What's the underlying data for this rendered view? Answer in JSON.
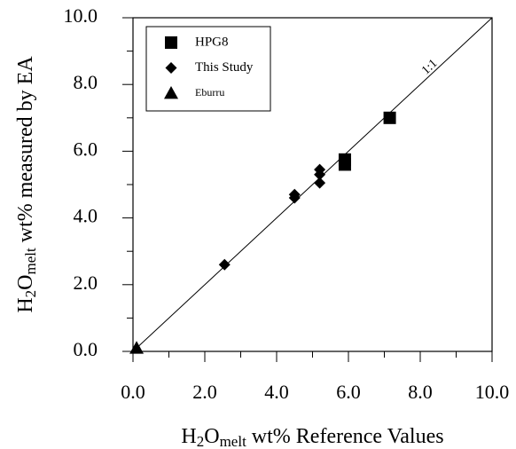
{
  "chart_data": {
    "type": "scatter",
    "xlabel_parts": [
      "H",
      "2",
      "O",
      "melt",
      " wt% Reference Values"
    ],
    "ylabel_parts": [
      "H",
      "2",
      "O",
      "melt",
      " wt% measured by EA"
    ],
    "line_label": "1:1",
    "line": [
      [
        0,
        0
      ],
      [
        10,
        10
      ]
    ],
    "xlim": [
      0,
      10
    ],
    "ylim": [
      0,
      10
    ],
    "xticks": [
      {
        "value": 0,
        "label": "0.0"
      },
      {
        "value": 2,
        "label": "2.0"
      },
      {
        "value": 4,
        "label": "4.0"
      },
      {
        "value": 6,
        "label": "6.0"
      },
      {
        "value": 8,
        "label": "8.0"
      },
      {
        "value": 10,
        "label": "10.0"
      }
    ],
    "yticks": [
      {
        "value": 0,
        "label": "0.0"
      },
      {
        "value": 2,
        "label": "2.0"
      },
      {
        "value": 4,
        "label": "4.0"
      },
      {
        "value": 6,
        "label": "6.0"
      },
      {
        "value": 8,
        "label": "8.0"
      },
      {
        "value": 10,
        "label": "10.0"
      }
    ],
    "minor_ticks": [
      1,
      3,
      5,
      7,
      9
    ],
    "legend": "upper left",
    "series": [
      {
        "name": "HPG8",
        "marker": "square",
        "color": "#000000",
        "x": [
          5.9,
          5.9,
          7.15
        ],
        "y": [
          5.6,
          5.75,
          7.0
        ]
      },
      {
        "name": "This Study",
        "marker": "diamond",
        "color": "#000000",
        "x": [
          2.55,
          4.5,
          4.5,
          5.2,
          5.2,
          5.2
        ],
        "y": [
          2.6,
          4.6,
          4.7,
          5.05,
          5.3,
          5.45
        ]
      },
      {
        "name": "Eburru",
        "marker": "triangle",
        "color": "#000000",
        "x": [
          0.1
        ],
        "y": [
          0.1
        ]
      }
    ]
  }
}
